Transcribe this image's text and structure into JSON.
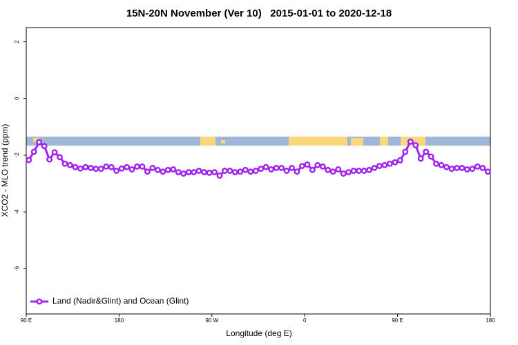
{
  "chart_data": {
    "type": "line",
    "title": "15N-20N November (Ver 10)   2015-01-01 to 2020-12-18",
    "x_label": "Longitude (deg E)",
    "y_label": "XCO2 - MLO trend (ppm)",
    "xlim": [
      90,
      540
    ],
    "ylim": [
      -7.6,
      2.5
    ],
    "xticks": [
      {
        "value": 90,
        "label": "90 E"
      },
      180,
      {
        "value": 270,
        "label": "90 W"
      },
      {
        "value": 360,
        "label": "0"
      },
      {
        "value": 450,
        "label": "90 E"
      },
      {
        "value": 540,
        "label": "180"
      }
    ],
    "yticks": [
      2,
      0,
      -2,
      -4,
      -6
    ],
    "legend_position": "bottom-left",
    "x": [
      92.5,
      97.5,
      102.5,
      107.5,
      112.5,
      117.5,
      122.5,
      127.5,
      132.5,
      137.5,
      142.5,
      147.5,
      152.5,
      157.5,
      162.5,
      167.5,
      172.5,
      177.5,
      182.5,
      187.5,
      192.5,
      197.5,
      202.5,
      207.5,
      212.5,
      217.5,
      222.5,
      227.5,
      232.5,
      237.5,
      242.5,
      247.5,
      252.5,
      257.5,
      262.5,
      267.5,
      272.5,
      277.5,
      282.5,
      287.5,
      292.5,
      297.5,
      302.5,
      307.5,
      312.5,
      317.5,
      322.5,
      327.5,
      332.5,
      337.5,
      342.5,
      347.5,
      352.5,
      357.5,
      362.5,
      367.5,
      372.5,
      377.5,
      382.5,
      387.5,
      392.5,
      397.5,
      402.5,
      407.5,
      412.5,
      417.5,
      422.5,
      427.5,
      432.5,
      437.5,
      442.5,
      447.5,
      452.5,
      457.5,
      462.5,
      467.5,
      472.5,
      477.5,
      482.5,
      487.5,
      492.5,
      497.5,
      502.5,
      507.5,
      512.5,
      517.5,
      522.5,
      527.5,
      532.5,
      537.5
    ],
    "series": [
      {
        "name": "Land (Nadir&Glint) and Ocean (Glint)",
        "color": "#a020f0",
        "values": [
          -2.17,
          -1.88,
          -1.54,
          -1.68,
          -2.15,
          -1.9,
          -2.07,
          -2.3,
          -2.35,
          -2.42,
          -2.47,
          -2.42,
          -2.45,
          -2.48,
          -2.48,
          -2.4,
          -2.42,
          -2.55,
          -2.47,
          -2.42,
          -2.5,
          -2.4,
          -2.4,
          -2.58,
          -2.45,
          -2.52,
          -2.58,
          -2.52,
          -2.5,
          -2.6,
          -2.65,
          -2.6,
          -2.6,
          -2.55,
          -2.6,
          -2.62,
          -2.6,
          -2.72,
          -2.55,
          -2.55,
          -2.6,
          -2.58,
          -2.52,
          -2.58,
          -2.55,
          -2.48,
          -2.42,
          -2.5,
          -2.45,
          -2.45,
          -2.55,
          -2.45,
          -2.58,
          -2.38,
          -2.33,
          -2.52,
          -2.35,
          -2.4,
          -2.52,
          -2.58,
          -2.5,
          -2.65,
          -2.6,
          -2.55,
          -2.55,
          -2.55,
          -2.52,
          -2.45,
          -2.38,
          -2.35,
          -2.3,
          -2.25,
          -2.18,
          -1.88,
          -1.52,
          -1.65,
          -2.12,
          -1.88,
          -2.05,
          -2.3,
          -2.35,
          -2.42,
          -2.48,
          -2.45,
          -2.45,
          -2.5,
          -2.48,
          -2.4,
          -2.45,
          -2.58
        ]
      }
    ]
  }
}
